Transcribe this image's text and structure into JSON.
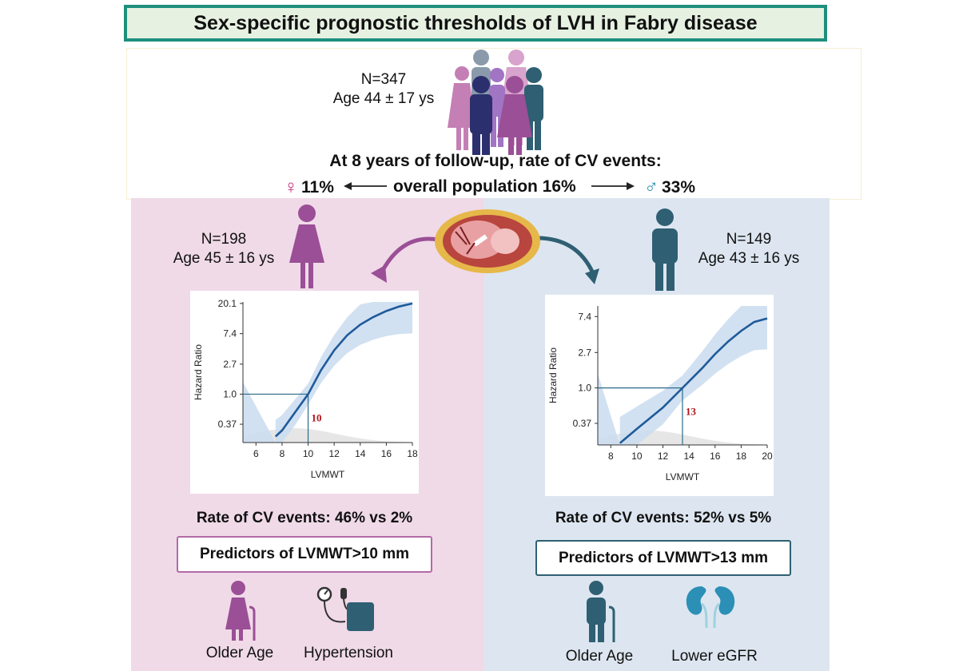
{
  "title": "Sex-specific prognostic thresholds of LVH in Fabry disease",
  "overall": {
    "n": "N=347",
    "age": "Age 44 ± 17 ys",
    "followup": "At 8 years of follow-up, rate of CV events:",
    "female_pct": "11%",
    "overall_label": "overall population 16%",
    "male_pct": "33%",
    "female_symbol": "♀",
    "male_symbol": "♂"
  },
  "female": {
    "n": "N=198",
    "age": "Age 45 ± 16 ys",
    "rate": "Rate of CV events: 46% vs 2%",
    "predictor_box": "Predictors of LVMWT>10 mm",
    "predictors": [
      "Older Age",
      "Hypertension"
    ],
    "color": "#9b4f96"
  },
  "male": {
    "n": "N=149",
    "age": "Age  43 ± 16 ys",
    "rate": "Rate of CV events: 52% vs 5%",
    "predictor_box": "Predictors of LVMWT>13 mm",
    "predictors": [
      "Older Age",
      "Lower eGFR"
    ],
    "color": "#2f5f73"
  },
  "chart_data": [
    {
      "type": "line",
      "xlabel": "LVMWT",
      "ylabel": "Hazard Ratio",
      "xlim": [
        5,
        18
      ],
      "x_ticks": [
        6,
        8,
        10,
        12,
        14,
        16,
        18
      ],
      "y_ticks": [
        "20.1",
        "7.4",
        "2.7",
        "1.0",
        "0.37"
      ],
      "threshold_x": 10,
      "threshold_label": "10",
      "x": [
        7.5,
        8,
        9,
        10,
        11,
        12,
        13,
        14,
        15,
        16,
        17,
        18
      ],
      "y_log": [
        -1.4,
        -1.2,
        -0.6,
        0.0,
        0.8,
        1.45,
        1.95,
        2.3,
        2.55,
        2.75,
        2.9,
        3.0
      ]
    },
    {
      "type": "line",
      "xlabel": "LVMWT",
      "ylabel": "Hazard Ratio",
      "xlim": [
        7,
        20
      ],
      "x_ticks": [
        8,
        10,
        12,
        14,
        16,
        18,
        20
      ],
      "y_ticks": [
        "7.4",
        "2.7",
        "1.0",
        "0.37"
      ],
      "threshold_x": 13.5,
      "threshold_label": "13",
      "x": [
        8.7,
        10,
        12,
        13.5,
        15,
        16,
        17,
        18,
        19,
        20
      ],
      "y_log": [
        -1.55,
        -1.15,
        -0.55,
        0.0,
        0.55,
        0.95,
        1.3,
        1.6,
        1.85,
        1.95
      ]
    }
  ]
}
